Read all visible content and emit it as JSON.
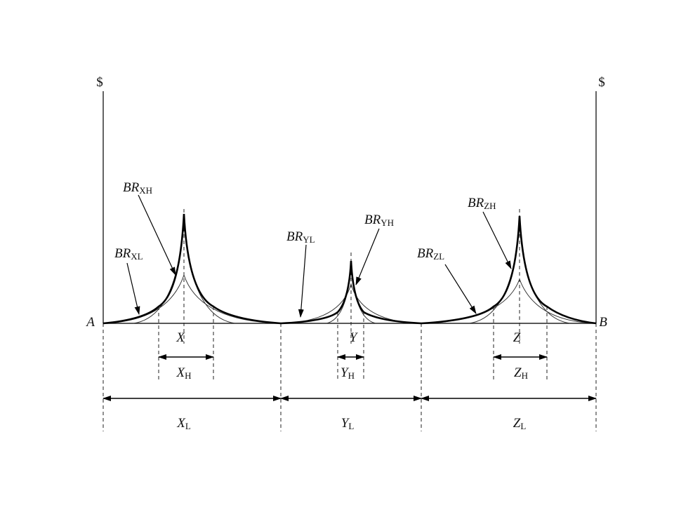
{
  "axes": {
    "left_label": "$",
    "right_label": "$",
    "start_label": "A",
    "end_label": "B"
  },
  "markets": [
    {
      "name": "X",
      "high_range": {
        "main": "X",
        "sub": "H"
      },
      "low_range": {
        "main": "X",
        "sub": "L"
      }
    },
    {
      "name": "Y",
      "high_range": {
        "main": "Y",
        "sub": "H"
      },
      "low_range": {
        "main": "Y",
        "sub": "L"
      }
    },
    {
      "name": "Z",
      "high_range": {
        "main": "Z",
        "sub": "H"
      },
      "low_range": {
        "main": "Z",
        "sub": "L"
      }
    }
  ],
  "curves": [
    {
      "main": "BR",
      "sub": "XH"
    },
    {
      "main": "BR",
      "sub": "XL"
    },
    {
      "main": "BR",
      "sub": "YL"
    },
    {
      "main": "BR",
      "sub": "YH"
    },
    {
      "main": "BR",
      "sub": "ZH"
    },
    {
      "main": "BR",
      "sub": "ZL"
    }
  ]
}
